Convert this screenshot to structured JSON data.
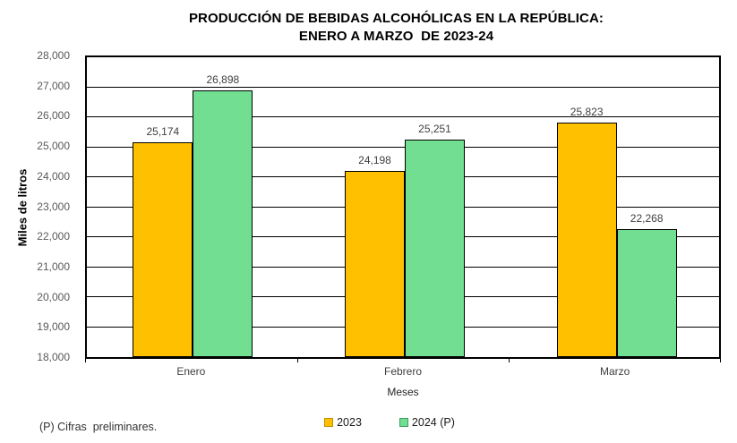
{
  "title": {
    "line1": "PRODUCCIÓN DE BEBIDAS ALCOHÓLICAS EN LA REPÚBLICA:",
    "line2": "ENERO A MARZO  DE 2023-24"
  },
  "footnote": "(P) Cifras  preliminares.",
  "chart_data": {
    "type": "bar",
    "categories": [
      "Enero",
      "Febrero",
      "Marzo"
    ],
    "series": [
      {
        "name": "2023",
        "color": "#FFC000",
        "swatch_border": "#BF8F00",
        "values": [
          25174,
          24198,
          25823
        ],
        "labels": [
          "25,174",
          "24,198",
          "25,823"
        ]
      },
      {
        "name": "2024 (P)",
        "color": "#71DE91",
        "swatch_border": "#3F9C5C",
        "values": [
          26898,
          25251,
          22268
        ],
        "labels": [
          "26,898",
          "25,251",
          "22,268"
        ]
      }
    ],
    "xlabel": "Meses",
    "ylabel": "Miles de litros",
    "ylim": [
      18000,
      28000
    ],
    "ytick_step": 1000,
    "ytick_labels": [
      "18,000",
      "19,000",
      "20,000",
      "21,000",
      "22,000",
      "23,000",
      "24,000",
      "25,000",
      "26,000",
      "27,000",
      "28,000"
    ],
    "grid": true,
    "legend_position": "bottom",
    "bar_border_color": "#000000"
  }
}
